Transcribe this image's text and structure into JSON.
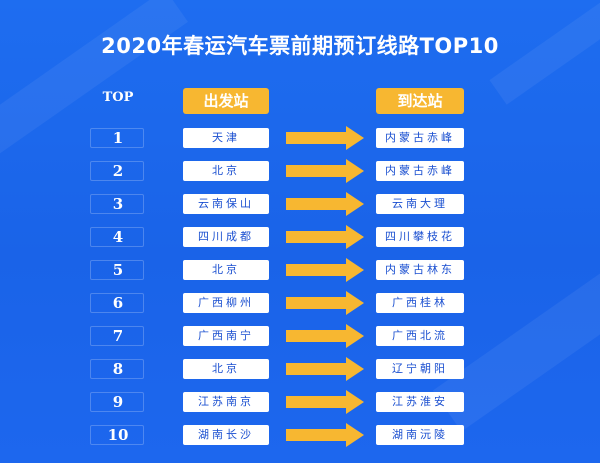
{
  "title": "2020年春运汽车票前期预订线路TOP10",
  "header": {
    "rank": "TOP",
    "from": "出发站",
    "to": "到达站"
  },
  "colors": {
    "background": "#1a63e8",
    "accent": "#f7b731",
    "cell": "#ffffff",
    "cell_text": "#1a4fd0"
  },
  "routes": [
    {
      "rank": "1",
      "from": "天津",
      "to": "内蒙古赤峰"
    },
    {
      "rank": "2",
      "from": "北京",
      "to": "内蒙古赤峰"
    },
    {
      "rank": "3",
      "from": "云南保山",
      "to": "云南大理"
    },
    {
      "rank": "4",
      "from": "四川成都",
      "to": "四川攀枝花"
    },
    {
      "rank": "5",
      "from": "北京",
      "to": "内蒙古林东"
    },
    {
      "rank": "6",
      "from": "广西柳州",
      "to": "广西桂林"
    },
    {
      "rank": "7",
      "from": "广西南宁",
      "to": "广西北流"
    },
    {
      "rank": "8",
      "from": "北京",
      "to": "辽宁朝阳"
    },
    {
      "rank": "9",
      "from": "江苏南京",
      "to": "江苏淮安"
    },
    {
      "rank": "10",
      "from": "湖南长沙",
      "to": "湖南沅陵"
    }
  ]
}
